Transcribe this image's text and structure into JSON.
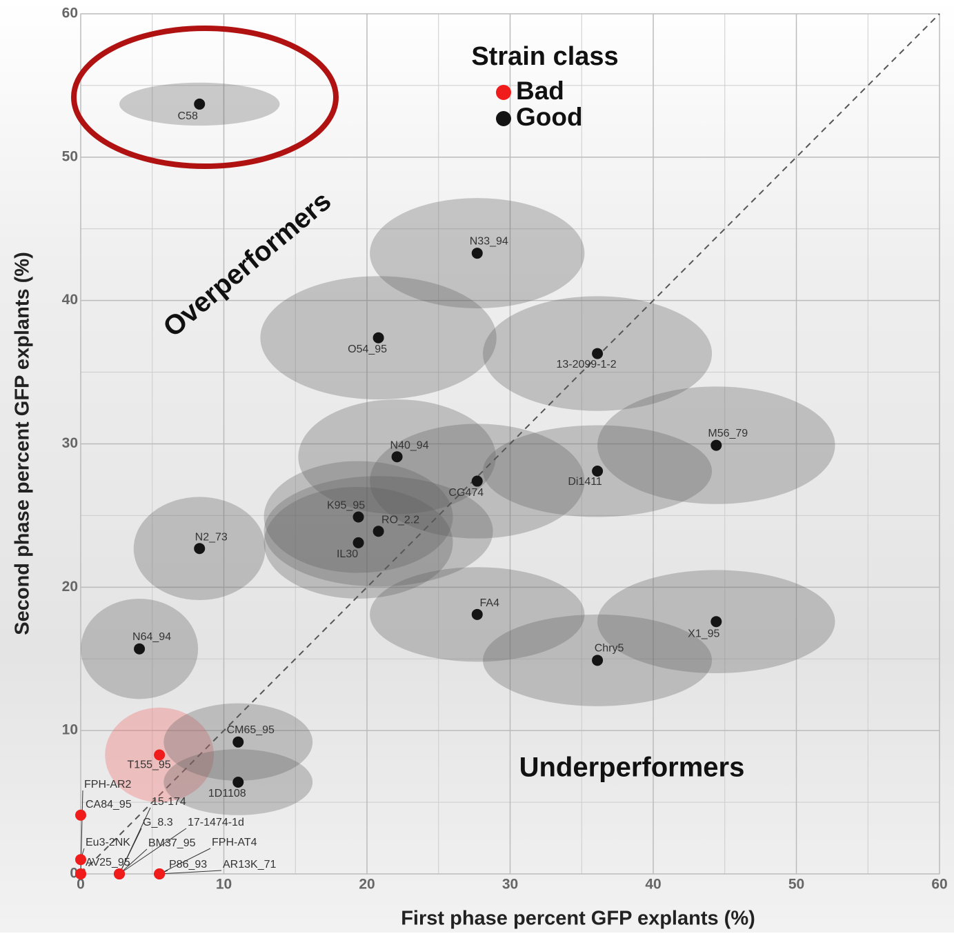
{
  "chart_data": {
    "type": "scatter",
    "x_label": "First phase percent GFP explants (%)",
    "y_label": "Second phase percent GFP explants (%)",
    "legend_title": "Strain class",
    "annotations": [
      "Overperformers",
      "Underperformers"
    ],
    "xlim": [
      0,
      60
    ],
    "ylim": [
      0,
      60
    ],
    "xticks": [
      0,
      10,
      20,
      30,
      40,
      50,
      60
    ],
    "yticks": [
      0,
      10,
      20,
      30,
      40,
      50,
      60
    ],
    "minor_ticks": [
      5,
      15,
      25,
      35,
      45,
      55
    ],
    "grid": true,
    "series": [
      {
        "name": "Bad",
        "color": "#f01c1c",
        "labels": [
          "T155_95",
          "FPH-AR2",
          "CA84_95",
          "15-174",
          "G_8.3",
          "17-1474-1d",
          "Eu3-2NK",
          "BM37_95",
          "FPH-AT4",
          "AV25_95",
          "P86_93",
          "AR13K_71"
        ],
        "x": [
          5.5,
          0,
          0,
          2.7,
          2.7,
          2.7,
          0,
          2.7,
          5.5,
          0,
          5.5,
          5.5
        ],
        "y": [
          8.3,
          0,
          4.1,
          0,
          0,
          0,
          1.0,
          0,
          0,
          0,
          0,
          0
        ],
        "x_err": [
          3.8,
          null,
          null,
          null,
          null,
          null,
          null,
          null,
          null,
          null,
          null,
          null
        ],
        "y_err": [
          3.3,
          null,
          null,
          null,
          null,
          null,
          null,
          null,
          null,
          null,
          null,
          null
        ]
      },
      {
        "name": "Good",
        "color": "#141414",
        "labels": [
          "C58",
          "N33_94",
          "O54_95",
          "13-2099-1-2",
          "M56_79",
          "N40_94",
          "CG474",
          "Di1411",
          "K95_95",
          "RO_2.2",
          "IL30",
          "N2_73",
          "FA4",
          "X1_95",
          "Chry5",
          "N64_94",
          "CM65_95",
          "1D1108"
        ],
        "x": [
          8.3,
          27.7,
          20.8,
          36.1,
          44.4,
          22.1,
          27.7,
          36.1,
          19.4,
          20.8,
          19.4,
          8.3,
          27.7,
          44.4,
          36.1,
          4.1,
          11.0,
          11.0
        ],
        "y": [
          53.7,
          43.3,
          37.4,
          36.3,
          29.9,
          29.1,
          27.4,
          28.1,
          24.9,
          23.9,
          23.1,
          22.7,
          18.1,
          17.6,
          14.9,
          15.7,
          9.2,
          6.4
        ],
        "x_err": [
          5.6,
          7.5,
          8.25,
          8.0,
          8.3,
          6.9,
          7.5,
          8.0,
          6.6,
          8.0,
          6.6,
          4.6,
          7.5,
          8.3,
          8.0,
          4.1,
          5.2,
          5.2
        ],
        "y_err": [
          1.5,
          3.85,
          4.3,
          4.0,
          4.1,
          4.0,
          4.0,
          3.2,
          3.9,
          3.85,
          3.9,
          3.6,
          3.3,
          3.6,
          3.2,
          3.5,
          2.7,
          2.3
        ]
      }
    ]
  }
}
